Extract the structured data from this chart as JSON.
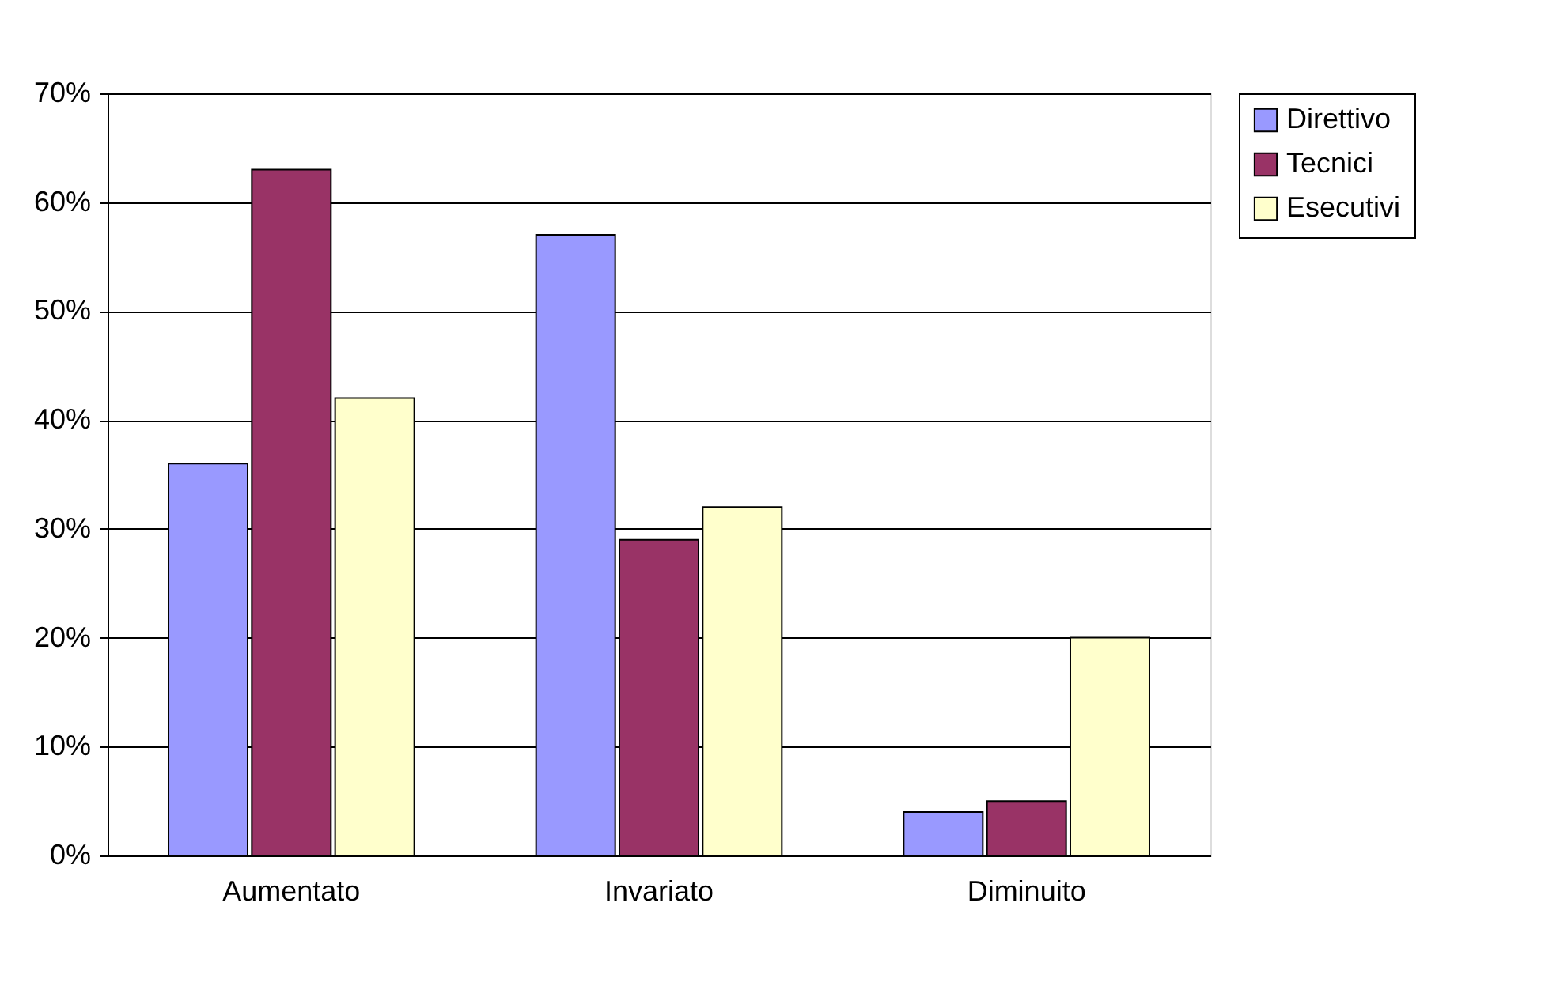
{
  "chart_data": {
    "type": "bar",
    "categories": [
      "Aumentato",
      "Invariato",
      "Diminuito"
    ],
    "series": [
      {
        "name": "Direttivo",
        "color": "#9999ff",
        "values": [
          36,
          57,
          4
        ]
      },
      {
        "name": "Tecnici",
        "color": "#993366",
        "values": [
          63,
          29,
          5
        ]
      },
      {
        "name": "Esecutivi",
        "color": "#ffffcc",
        "values": [
          42,
          32,
          20
        ]
      }
    ],
    "ylim": [
      0,
      70
    ],
    "yticks": [
      {
        "value": 0,
        "label": "0%"
      },
      {
        "value": 10,
        "label": "10%"
      },
      {
        "value": 20,
        "label": "20%"
      },
      {
        "value": 30,
        "label": "30%"
      },
      {
        "value": 40,
        "label": "40%"
      },
      {
        "value": 50,
        "label": "50%"
      },
      {
        "value": 60,
        "label": "60%"
      },
      {
        "value": 70,
        "label": "70%"
      }
    ],
    "grid": "y",
    "legend": "right"
  }
}
